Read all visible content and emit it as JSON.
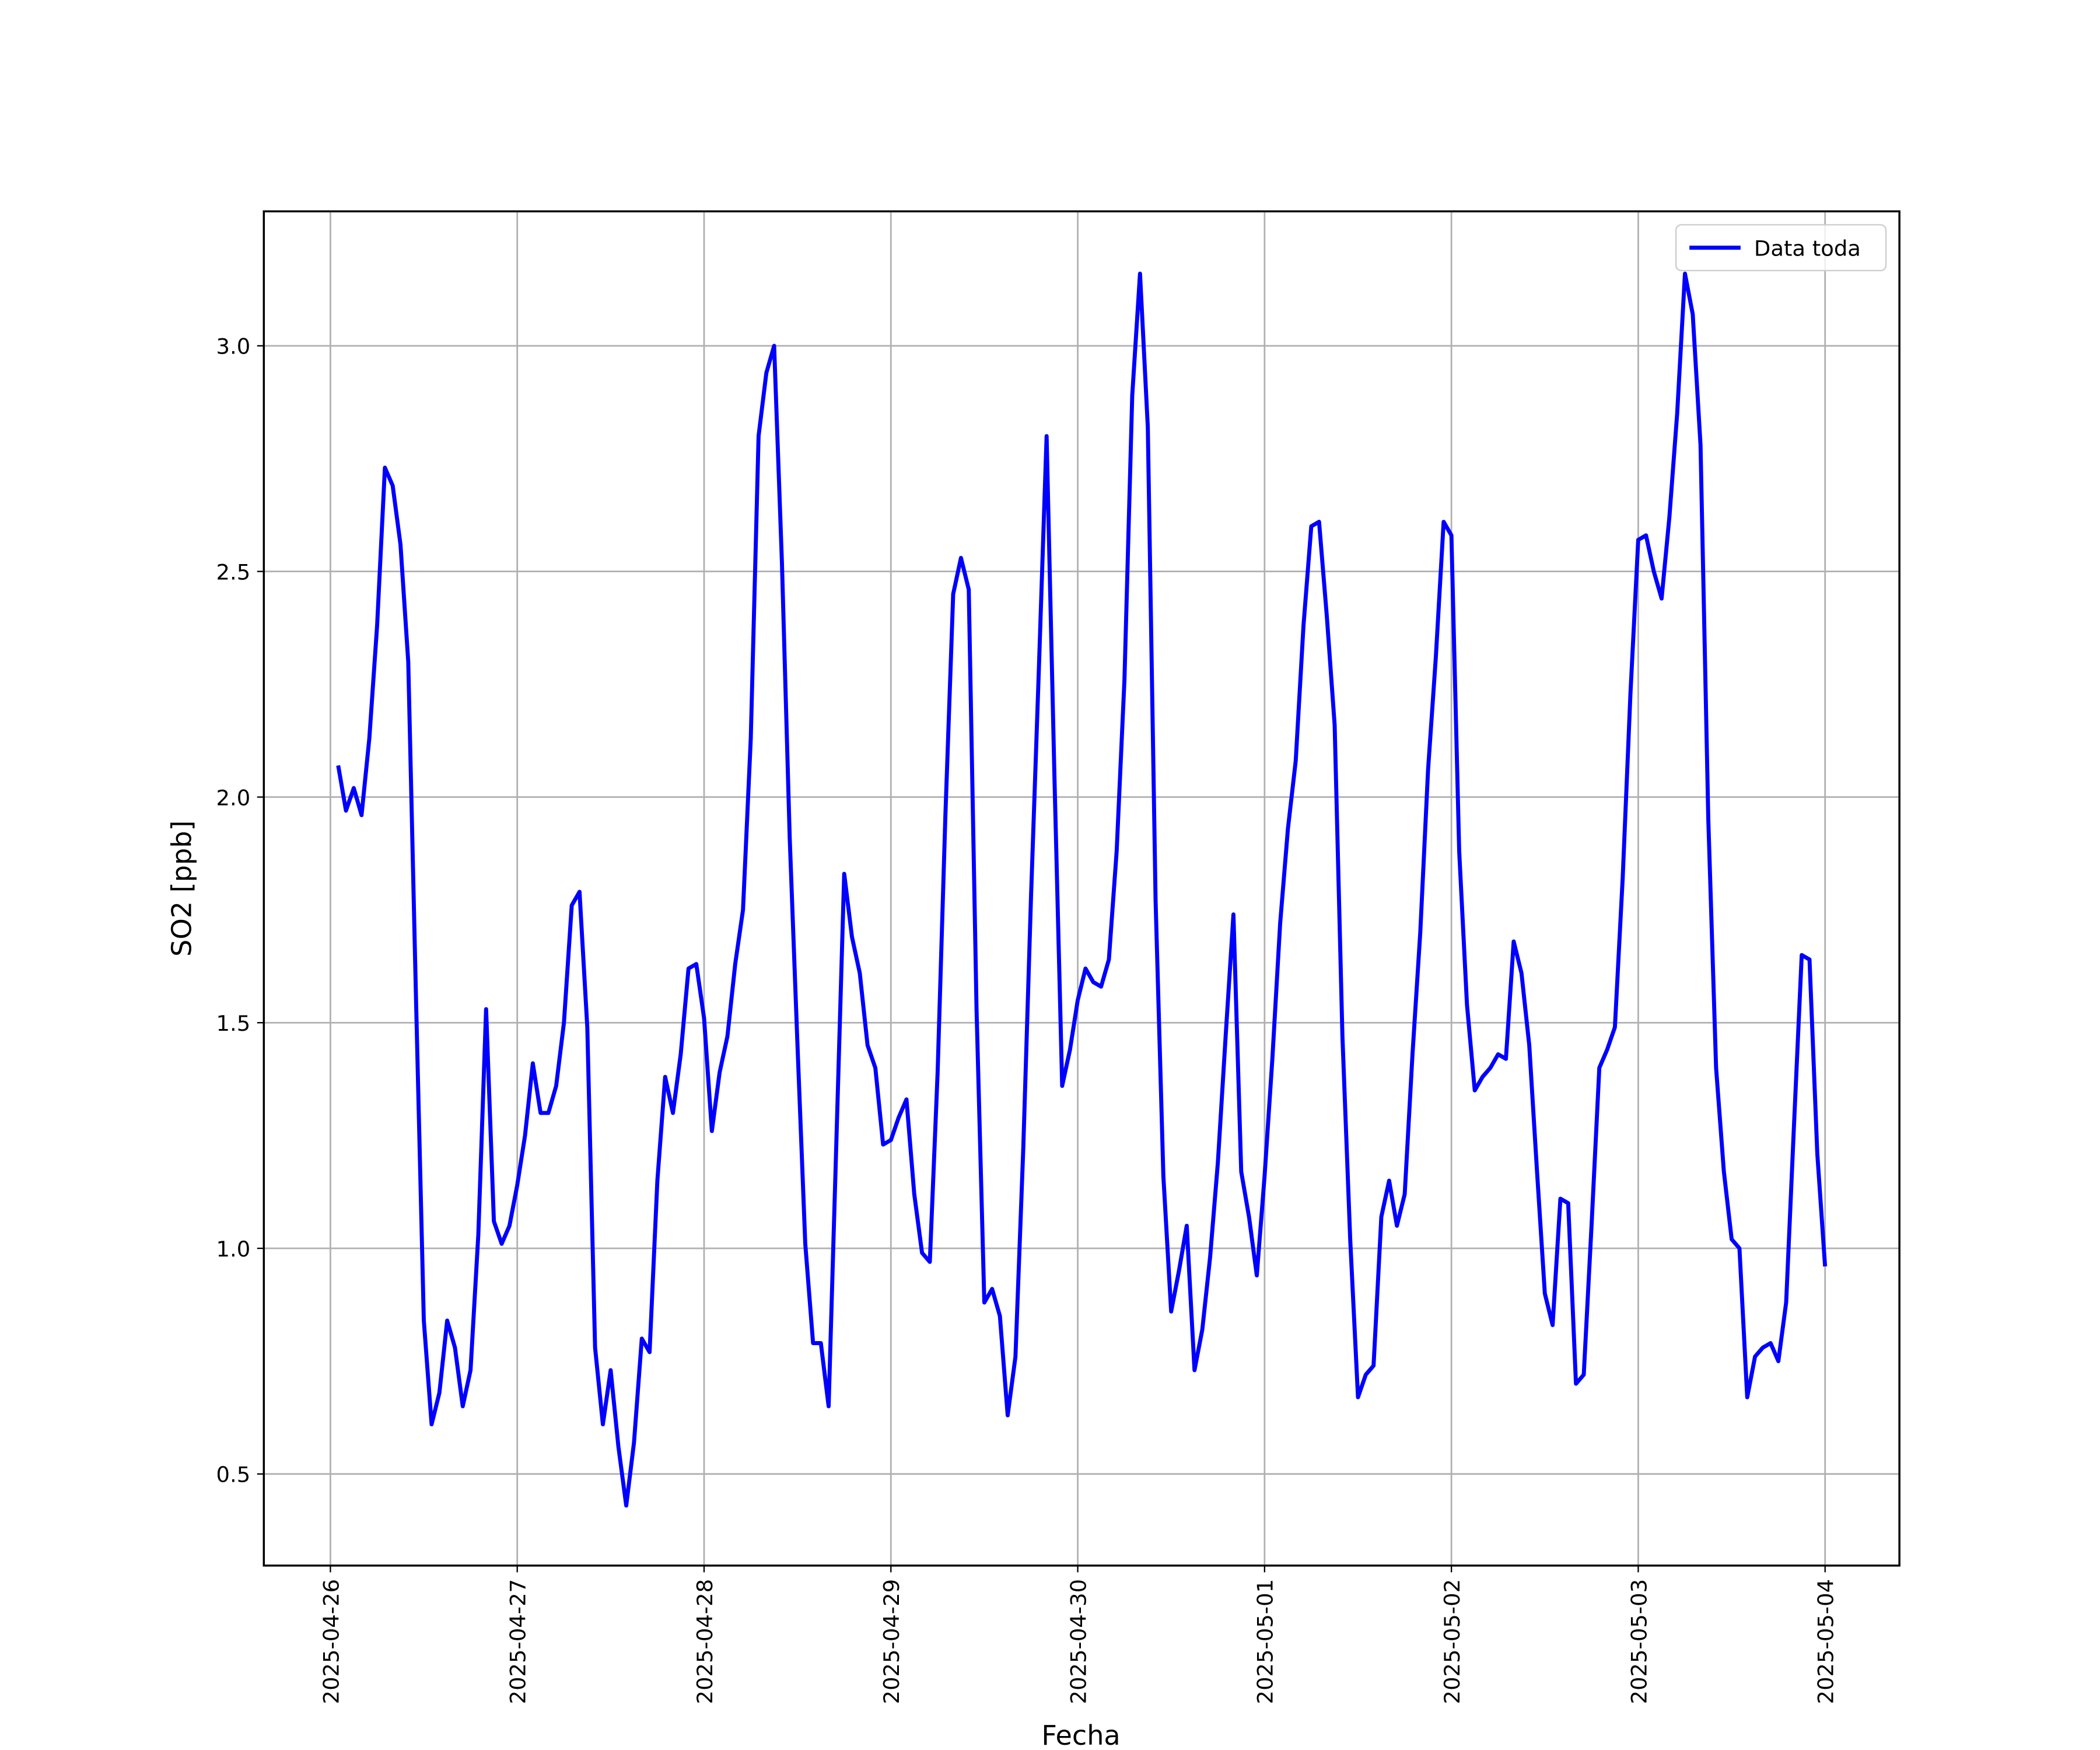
{
  "chart_data": {
    "type": "line",
    "xlabel": "Fecha",
    "ylabel": "SO2 [ppb]",
    "x": [
      "2025-04-26T01:00",
      "2025-04-26T02:00",
      "2025-04-26T03:00",
      "2025-04-26T04:00",
      "2025-04-26T05:00",
      "2025-04-26T06:00",
      "2025-04-26T07:00",
      "2025-04-26T08:00",
      "2025-04-26T09:00",
      "2025-04-26T10:00",
      "2025-04-26T11:00",
      "2025-04-26T12:00",
      "2025-04-26T13:00",
      "2025-04-26T14:00",
      "2025-04-26T15:00",
      "2025-04-26T16:00",
      "2025-04-26T17:00",
      "2025-04-26T18:00",
      "2025-04-26T19:00",
      "2025-04-26T20:00",
      "2025-04-26T21:00",
      "2025-04-26T22:00",
      "2025-04-26T23:00",
      "2025-04-27T00:00",
      "2025-04-27T01:00",
      "2025-04-27T02:00",
      "2025-04-27T03:00",
      "2025-04-27T04:00",
      "2025-04-27T05:00",
      "2025-04-27T06:00",
      "2025-04-27T07:00",
      "2025-04-27T08:00",
      "2025-04-27T09:00",
      "2025-04-27T10:00",
      "2025-04-27T11:00",
      "2025-04-27T12:00",
      "2025-04-27T13:00",
      "2025-04-27T14:00",
      "2025-04-27T15:00",
      "2025-04-27T16:00",
      "2025-04-27T17:00",
      "2025-04-27T18:00",
      "2025-04-27T19:00",
      "2025-04-27T20:00",
      "2025-04-27T21:00",
      "2025-04-27T22:00",
      "2025-04-27T23:00",
      "2025-04-28T00:00",
      "2025-04-28T01:00",
      "2025-04-28T02:00",
      "2025-04-28T03:00",
      "2025-04-28T04:00",
      "2025-04-28T05:00",
      "2025-04-28T06:00",
      "2025-04-28T07:00",
      "2025-04-28T08:00",
      "2025-04-28T09:00",
      "2025-04-28T10:00",
      "2025-04-28T11:00",
      "2025-04-28T12:00",
      "2025-04-28T13:00",
      "2025-04-28T14:00",
      "2025-04-28T15:00",
      "2025-04-28T16:00",
      "2025-04-28T17:00",
      "2025-04-28T18:00",
      "2025-04-28T19:00",
      "2025-04-28T20:00",
      "2025-04-28T21:00",
      "2025-04-28T22:00",
      "2025-04-28T23:00",
      "2025-04-29T00:00",
      "2025-04-29T01:00",
      "2025-04-29T02:00",
      "2025-04-29T03:00",
      "2025-04-29T04:00",
      "2025-04-29T05:00",
      "2025-04-29T06:00",
      "2025-04-29T07:00",
      "2025-04-29T08:00",
      "2025-04-29T09:00",
      "2025-04-29T10:00",
      "2025-04-29T11:00",
      "2025-04-29T12:00",
      "2025-04-29T13:00",
      "2025-04-29T14:00",
      "2025-04-29T15:00",
      "2025-04-29T16:00",
      "2025-04-29T17:00",
      "2025-04-29T18:00",
      "2025-04-29T19:00",
      "2025-04-29T20:00",
      "2025-04-29T21:00",
      "2025-04-29T22:00",
      "2025-04-29T23:00",
      "2025-04-30T00:00",
      "2025-04-30T01:00",
      "2025-04-30T02:00",
      "2025-04-30T03:00",
      "2025-04-30T04:00",
      "2025-04-30T05:00",
      "2025-04-30T06:00",
      "2025-04-30T07:00",
      "2025-04-30T08:00",
      "2025-04-30T09:00",
      "2025-04-30T10:00",
      "2025-04-30T11:00",
      "2025-04-30T12:00",
      "2025-04-30T13:00",
      "2025-04-30T14:00",
      "2025-04-30T15:00",
      "2025-04-30T16:00",
      "2025-04-30T17:00",
      "2025-04-30T18:00",
      "2025-04-30T19:00",
      "2025-04-30T20:00",
      "2025-04-30T21:00",
      "2025-04-30T22:00",
      "2025-04-30T23:00",
      "2025-05-01T00:00",
      "2025-05-01T01:00",
      "2025-05-01T02:00",
      "2025-05-01T03:00",
      "2025-05-01T04:00",
      "2025-05-01T05:00",
      "2025-05-01T06:00",
      "2025-05-01T07:00",
      "2025-05-01T08:00",
      "2025-05-01T09:00",
      "2025-05-01T10:00",
      "2025-05-01T11:00",
      "2025-05-01T12:00",
      "2025-05-01T13:00",
      "2025-05-01T14:00",
      "2025-05-01T15:00",
      "2025-05-01T16:00",
      "2025-05-01T17:00",
      "2025-05-01T18:00",
      "2025-05-01T19:00",
      "2025-05-01T20:00",
      "2025-05-01T21:00",
      "2025-05-01T22:00",
      "2025-05-01T23:00",
      "2025-05-02T00:00",
      "2025-05-02T01:00",
      "2025-05-02T02:00",
      "2025-05-02T03:00",
      "2025-05-02T04:00",
      "2025-05-02T05:00",
      "2025-05-02T06:00",
      "2025-05-02T07:00",
      "2025-05-02T08:00",
      "2025-05-02T09:00",
      "2025-05-02T10:00",
      "2025-05-02T11:00",
      "2025-05-02T12:00",
      "2025-05-02T13:00",
      "2025-05-02T14:00",
      "2025-05-02T15:00",
      "2025-05-02T16:00",
      "2025-05-02T17:00",
      "2025-05-02T18:00",
      "2025-05-02T19:00",
      "2025-05-02T20:00",
      "2025-05-02T21:00",
      "2025-05-02T22:00",
      "2025-05-02T23:00",
      "2025-05-03T00:00",
      "2025-05-03T01:00",
      "2025-05-03T02:00",
      "2025-05-03T03:00",
      "2025-05-03T04:00",
      "2025-05-03T05:00",
      "2025-05-03T06:00",
      "2025-05-03T07:00",
      "2025-05-03T08:00",
      "2025-05-03T09:00",
      "2025-05-03T10:00",
      "2025-05-03T11:00",
      "2025-05-03T12:00",
      "2025-05-03T13:00",
      "2025-05-03T14:00",
      "2025-05-03T15:00",
      "2025-05-03T16:00",
      "2025-05-03T17:00",
      "2025-05-03T18:00",
      "2025-05-03T19:00",
      "2025-05-03T20:00",
      "2025-05-03T21:00",
      "2025-05-03T22:00",
      "2025-05-03T23:00",
      "2025-05-04T00:00"
    ],
    "series": [
      {
        "name": "Data toda",
        "color": "#0000ff",
        "values": [
          2.07,
          1.97,
          2.02,
          1.96,
          2.13,
          2.38,
          2.73,
          2.69,
          2.56,
          2.3,
          1.55,
          0.84,
          0.61,
          0.68,
          0.84,
          0.78,
          0.65,
          0.73,
          1.03,
          1.53,
          1.06,
          1.01,
          1.05,
          1.14,
          1.25,
          1.41,
          1.3,
          1.3,
          1.36,
          1.5,
          1.76,
          1.79,
          1.49,
          0.78,
          0.61,
          0.73,
          0.56,
          0.43,
          0.57,
          0.8,
          0.77,
          1.15,
          1.38,
          1.3,
          1.43,
          1.62,
          1.63,
          1.51,
          1.26,
          1.39,
          1.47,
          1.63,
          1.75,
          2.13,
          2.8,
          2.94,
          3.0,
          2.52,
          1.91,
          1.45,
          1.01,
          0.79,
          0.79,
          0.65,
          1.24,
          1.83,
          1.69,
          1.61,
          1.45,
          1.4,
          1.23,
          1.24,
          1.29,
          1.33,
          1.12,
          0.99,
          0.97,
          1.39,
          1.96,
          2.45,
          2.53,
          2.46,
          1.53,
          0.88,
          0.91,
          0.85,
          0.63,
          0.76,
          1.22,
          1.78,
          2.28,
          2.8,
          2.05,
          1.36,
          1.44,
          1.55,
          1.62,
          1.59,
          1.58,
          1.64,
          1.88,
          2.26,
          2.89,
          3.16,
          2.82,
          1.77,
          1.16,
          0.86,
          0.95,
          1.05,
          0.73,
          0.82,
          0.98,
          1.19,
          1.47,
          1.74,
          1.17,
          1.07,
          0.94,
          1.16,
          1.42,
          1.72,
          1.93,
          2.08,
          2.38,
          2.6,
          2.61,
          2.4,
          2.16,
          1.47,
          1.02,
          0.67,
          0.72,
          0.74,
          1.07,
          1.15,
          1.05,
          1.12,
          1.43,
          1.7,
          2.06,
          2.31,
          2.61,
          2.58,
          1.88,
          1.54,
          1.35,
          1.38,
          1.4,
          1.43,
          1.42,
          1.68,
          1.61,
          1.45,
          1.17,
          0.9,
          0.83,
          1.11,
          1.1,
          0.7,
          0.72,
          1.05,
          1.4,
          1.44,
          1.49,
          1.82,
          2.23,
          2.57,
          2.58,
          2.5,
          2.44,
          2.62,
          2.85,
          3.16,
          3.07,
          2.78,
          1.95,
          1.4,
          1.17,
          1.02,
          1.0,
          0.67,
          0.76,
          0.78,
          0.79,
          0.75,
          0.88,
          1.27,
          1.65,
          1.64,
          1.21,
          0.96
        ]
      }
    ],
    "xlim": [
      "2025-04-25T15:27",
      "2025-05-04T09:33"
    ],
    "xticks": [
      "2025-04-26",
      "2025-04-27",
      "2025-04-28",
      "2025-04-29",
      "2025-04-30",
      "2025-05-01",
      "2025-05-02",
      "2025-05-03",
      "2025-05-04"
    ],
    "ylim": [
      0.297,
      3.298
    ],
    "yticks": [
      0.5,
      {
        "value": 1,
        "label": "1.0"
      },
      1.5,
      {
        "value": 2,
        "label": "2.0"
      },
      2.5,
      {
        "value": 3,
        "label": "3.0"
      }
    ],
    "grid": true,
    "legend": "upper right"
  }
}
